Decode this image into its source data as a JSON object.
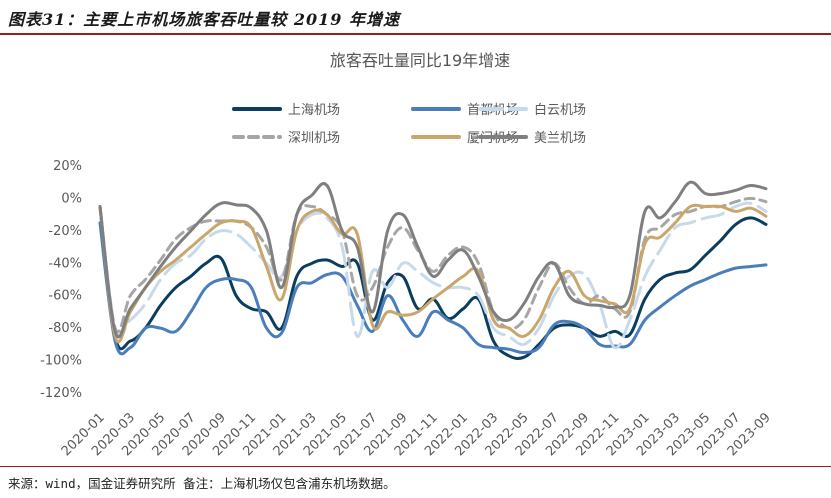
{
  "figure": {
    "title": "图表31：主要上市机场旅客吞吐量较 2019 年增速",
    "source": "来源：wind，国金证券研究所   备注：上海机场仅包含浦东机场数据。"
  },
  "chart_data": {
    "type": "line",
    "title": "旅客吞吐量同比19年增速",
    "xlabel": "",
    "ylabel": "",
    "ylim": [
      -120,
      20
    ],
    "yticks": [
      20,
      0,
      -20,
      -40,
      -60,
      -80,
      -100,
      -120
    ],
    "ytick_labels": [
      "20%",
      "0%",
      "-20%",
      "-40%",
      "-60%",
      "-80%",
      "-100%",
      "-120%"
    ],
    "x_labels": [
      "2020-01",
      "2020-03",
      "2020-05",
      "2020-07",
      "2020-09",
      "2020-11",
      "2021-01",
      "2021-03",
      "2021-05",
      "2021-07",
      "2021-09",
      "2021-11",
      "2022-01",
      "2022-03",
      "2022-05",
      "2022-07",
      "2022-09",
      "2022-11",
      "2023-01",
      "2023-03",
      "2023-05",
      "2023-07",
      "2023-09"
    ],
    "x": [
      "2020-01",
      "2020-02",
      "2020-03",
      "2020-04",
      "2020-05",
      "2020-06",
      "2020-07",
      "2020-08",
      "2020-09",
      "2020-10",
      "2020-11",
      "2020-12",
      "2021-01",
      "2021-02",
      "2021-03",
      "2021-04",
      "2021-05",
      "2021-06",
      "2021-07",
      "2021-08",
      "2021-09",
      "2021-10",
      "2021-11",
      "2021-12",
      "2022-01",
      "2022-02",
      "2022-03",
      "2022-04",
      "2022-05",
      "2022-06",
      "2022-07",
      "2022-08",
      "2022-09",
      "2022-10",
      "2022-11",
      "2022-12",
      "2023-01",
      "2023-02",
      "2023-03",
      "2023-04",
      "2023-05",
      "2023-06",
      "2023-07",
      "2023-08",
      "2023-09"
    ],
    "grid": false,
    "legend_position": "top",
    "series": [
      {
        "name": "上海机场",
        "color": "#0b3d5e",
        "dash": "solid",
        "width": 3,
        "values": [
          -5,
          -85,
          -88,
          -80,
          -66,
          -55,
          -48,
          -40,
          -37,
          -60,
          -68,
          -70,
          -80,
          -48,
          -40,
          -38,
          -42,
          -40,
          -75,
          -52,
          -48,
          -68,
          -62,
          -74,
          -68,
          -62,
          -88,
          -97,
          -98,
          -90,
          -80,
          -78,
          -80,
          -85,
          -82,
          -84,
          -62,
          -50,
          -46,
          -44,
          -35,
          -26,
          -16,
          -12,
          -16
        ]
      },
      {
        "name": "首都机场",
        "color": "#4a7ebb",
        "dash": "solid",
        "width": 3,
        "values": [
          -15,
          -88,
          -92,
          -80,
          -80,
          -82,
          -70,
          -55,
          -50,
          -50,
          -55,
          -80,
          -83,
          -55,
          -52,
          -47,
          -48,
          -66,
          -82,
          -60,
          -75,
          -85,
          -70,
          -75,
          -80,
          -90,
          -92,
          -93,
          -95,
          -92,
          -78,
          -76,
          -80,
          -90,
          -91,
          -90,
          -75,
          -67,
          -60,
          -54,
          -50,
          -46,
          -43,
          -42,
          -41
        ]
      },
      {
        "name": "白云机场",
        "color": "#c7daeb",
        "dash": "long",
        "width": 3,
        "values": [
          -5,
          -80,
          -75,
          -65,
          -50,
          -40,
          -35,
          -25,
          -20,
          -22,
          -30,
          -40,
          -48,
          -20,
          -10,
          -12,
          -30,
          -85,
          -45,
          -55,
          -40,
          -45,
          -52,
          -55,
          -55,
          -60,
          -80,
          -85,
          -90,
          -80,
          -60,
          -48,
          -47,
          -65,
          -92,
          -75,
          -48,
          -32,
          -18,
          -15,
          -12,
          -10,
          -5,
          -3,
          -8
        ]
      },
      {
        "name": "深圳机场",
        "color": "#a6a6a6",
        "dash": "dash",
        "width": 3,
        "values": [
          -5,
          -80,
          -60,
          -50,
          -38,
          -25,
          -18,
          -14,
          -14,
          -14,
          -18,
          -30,
          -50,
          -10,
          -5,
          -10,
          -20,
          -60,
          -55,
          -30,
          -18,
          -32,
          -45,
          -35,
          -30,
          -40,
          -70,
          -80,
          -75,
          -55,
          -40,
          -55,
          -65,
          -60,
          -68,
          -70,
          -25,
          -18,
          -10,
          -8,
          -5,
          -5,
          -2,
          0,
          -2
        ]
      },
      {
        "name": "厦门机场",
        "color": "#c9a66b",
        "dash": "solid",
        "width": 3,
        "values": [
          -5,
          -85,
          -70,
          -55,
          -45,
          -38,
          -30,
          -22,
          -15,
          -14,
          -18,
          -42,
          -62,
          -20,
          -8,
          -10,
          -22,
          -22,
          -78,
          -70,
          -72,
          -70,
          -62,
          -55,
          -48,
          -45,
          -75,
          -80,
          -85,
          -75,
          -55,
          -45,
          -60,
          -63,
          -65,
          -68,
          -28,
          -24,
          -15,
          -5,
          -5,
          -5,
          -8,
          -6,
          -11
        ]
      },
      {
        "name": "美兰机场",
        "color": "#7f7f7f",
        "dash": "solid",
        "width": 3,
        "values": [
          -5,
          -82,
          -68,
          -55,
          -42,
          -30,
          -20,
          -10,
          -3,
          -4,
          -6,
          -20,
          -55,
          -10,
          2,
          8,
          -20,
          -30,
          -70,
          -20,
          -10,
          -30,
          -48,
          -38,
          -32,
          -48,
          -70,
          -75,
          -65,
          -48,
          -40,
          -60,
          -65,
          -66,
          -67,
          -60,
          -8,
          -12,
          -2,
          10,
          3,
          3,
          5,
          8,
          6
        ]
      }
    ]
  }
}
